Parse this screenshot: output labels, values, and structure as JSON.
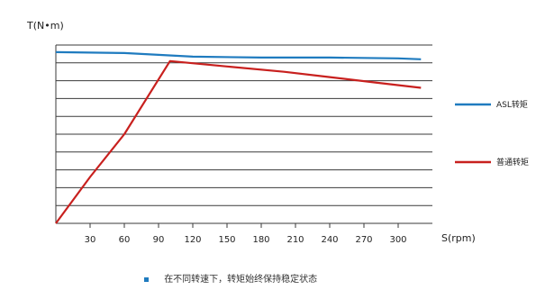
{
  "chart_data": {
    "type": "line",
    "title": "",
    "ylabel": "T(N•m)",
    "xlabel": "S(rpm)",
    "x_ticks": [
      30,
      60,
      90,
      120,
      150,
      180,
      210,
      240,
      270,
      300
    ],
    "xlim": [
      0,
      330
    ],
    "ylim": [
      0,
      10
    ],
    "grid": true,
    "legend_position": "right",
    "series": [
      {
        "name": "ASL转矩",
        "color": "#1f7bbf",
        "x": [
          0,
          60,
          90,
          120,
          180,
          240,
          300,
          320
        ],
        "y": [
          9.6,
          9.55,
          9.45,
          9.35,
          9.3,
          9.3,
          9.25,
          9.2
        ]
      },
      {
        "name": "普通转矩",
        "color": "#c8201e",
        "x": [
          0,
          30,
          60,
          100,
          150,
          200,
          240,
          280,
          320
        ],
        "y": [
          0,
          2.6,
          5.0,
          9.1,
          8.8,
          8.5,
          8.2,
          7.9,
          7.6
        ]
      }
    ]
  },
  "footnote": "在不同转速下，转矩始终保持稳定状态"
}
